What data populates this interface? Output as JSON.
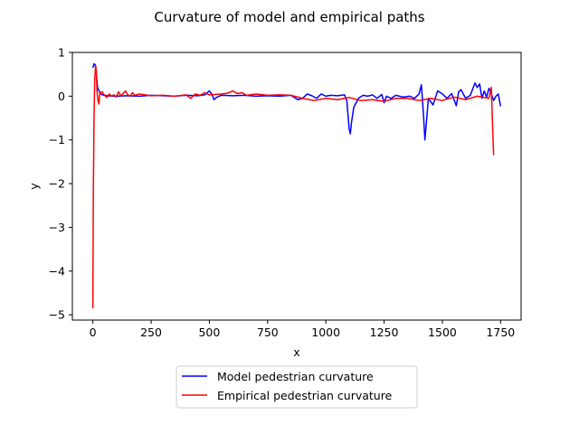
{
  "chart_data": {
    "type": "line",
    "title": "Curvature of model and empirical paths",
    "xlabel": "x",
    "ylabel": "y",
    "xlim": [
      -88,
      1838
    ],
    "ylim": [
      -5.12,
      1.0
    ],
    "xticks": [
      0,
      250,
      500,
      750,
      1000,
      1250,
      1500,
      1750
    ],
    "yticks": [
      1,
      0,
      -1,
      -2,
      -3,
      -4,
      -5
    ],
    "xtick_labels": [
      "0",
      "250",
      "500",
      "750",
      "1000",
      "1250",
      "1500",
      "1750"
    ],
    "ytick_labels": [
      "1",
      "0",
      "−1",
      "−2",
      "−3",
      "−4",
      "−5"
    ],
    "grid": false,
    "legend_position": "below-center",
    "series": [
      {
        "name": "Model pedestrian curvature",
        "color": "#0000ff",
        "x": [
          0,
          5,
          10,
          15,
          20,
          30,
          40,
          60,
          100,
          150,
          200,
          250,
          300,
          350,
          400,
          450,
          480,
          500,
          510,
          520,
          530,
          550,
          600,
          650,
          700,
          750,
          800,
          850,
          880,
          900,
          920,
          940,
          960,
          980,
          1000,
          1020,
          1050,
          1080,
          1090,
          1100,
          1105,
          1110,
          1120,
          1140,
          1160,
          1180,
          1200,
          1220,
          1240,
          1250,
          1260,
          1280,
          1300,
          1330,
          1360,
          1380,
          1400,
          1410,
          1420,
          1425,
          1430,
          1440,
          1460,
          1480,
          1500,
          1520,
          1540,
          1560,
          1570,
          1580,
          1600,
          1620,
          1640,
          1650,
          1660,
          1670,
          1680,
          1690,
          1700,
          1710,
          1720,
          1730,
          1740,
          1750
        ],
        "y": [
          0.65,
          0.74,
          0.72,
          0.5,
          0.2,
          0.08,
          0.03,
          0.01,
          0.0,
          0.01,
          0.0,
          0.02,
          0.01,
          0.0,
          0.02,
          0.01,
          0.03,
          0.12,
          0.05,
          -0.08,
          -0.03,
          0.02,
          0.01,
          0.02,
          0.0,
          0.01,
          0.0,
          0.02,
          -0.08,
          -0.05,
          0.05,
          0.01,
          -0.05,
          0.05,
          0.0,
          0.02,
          0.01,
          0.03,
          -0.1,
          -0.75,
          -0.86,
          -0.6,
          -0.25,
          -0.05,
          0.02,
          0.0,
          0.03,
          -0.05,
          0.04,
          -0.15,
          0.0,
          -0.05,
          0.02,
          -0.02,
          0.0,
          -0.05,
          0.05,
          0.26,
          -0.5,
          -1.0,
          -0.7,
          -0.05,
          -0.2,
          0.12,
          0.05,
          -0.05,
          0.06,
          -0.22,
          0.1,
          0.15,
          -0.05,
          0.02,
          0.3,
          0.2,
          0.28,
          -0.05,
          0.12,
          -0.02,
          0.18,
          0.06,
          -0.1,
          0.0,
          0.05,
          -0.23
        ]
      },
      {
        "name": "Empirical pedestrian curvature",
        "color": "#ff0000",
        "x": [
          0,
          2,
          5,
          8,
          12,
          15,
          18,
          22,
          26,
          30,
          40,
          50,
          60,
          70,
          80,
          90,
          100,
          110,
          120,
          130,
          140,
          150,
          160,
          170,
          180,
          200,
          250,
          300,
          350,
          400,
          420,
          440,
          460,
          480,
          500,
          550,
          580,
          600,
          620,
          640,
          660,
          700,
          750,
          800,
          850,
          900,
          950,
          1000,
          1050,
          1100,
          1150,
          1200,
          1250,
          1300,
          1350,
          1400,
          1450,
          1500,
          1550,
          1600,
          1650,
          1700,
          1710,
          1720
        ],
        "y": [
          -4.85,
          -2.2,
          -0.5,
          0.4,
          0.7,
          0.55,
          0.1,
          -0.1,
          -0.18,
          0.08,
          0.1,
          0.02,
          -0.03,
          0.05,
          0.0,
          0.03,
          -0.02,
          0.1,
          0.01,
          0.06,
          0.12,
          0.03,
          0.0,
          0.08,
          0.02,
          0.05,
          0.01,
          0.02,
          0.0,
          0.03,
          -0.05,
          0.05,
          0.02,
          0.08,
          0.03,
          0.05,
          0.07,
          0.12,
          0.06,
          0.08,
          0.02,
          0.05,
          0.02,
          0.03,
          0.02,
          -0.05,
          -0.1,
          -0.05,
          -0.08,
          -0.03,
          -0.1,
          -0.08,
          -0.12,
          -0.05,
          -0.05,
          -0.1,
          -0.05,
          -0.1,
          -0.02,
          -0.08,
          0.0,
          -0.05,
          0.2,
          -1.35
        ]
      }
    ]
  }
}
